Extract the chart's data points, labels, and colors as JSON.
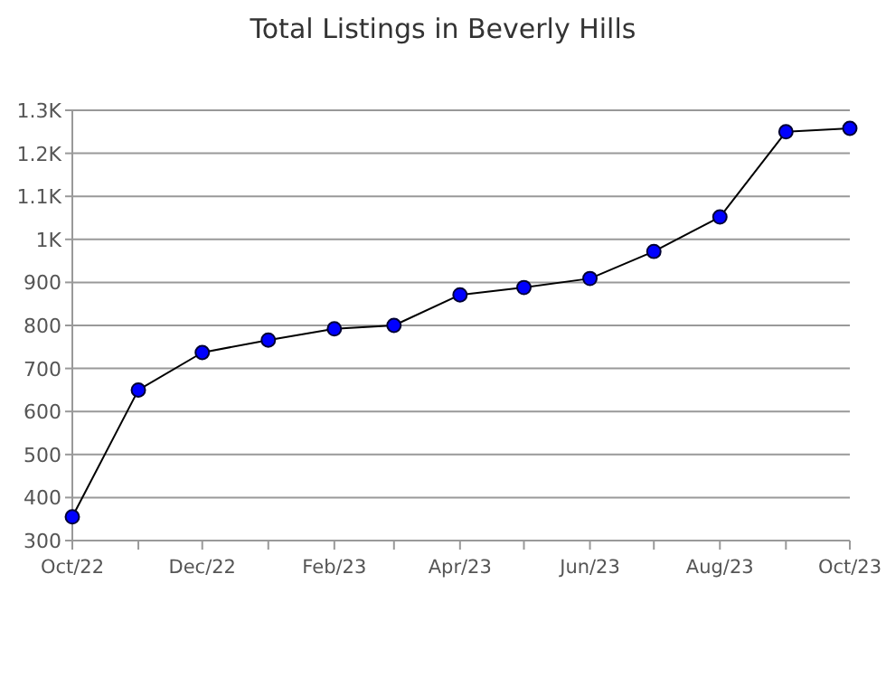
{
  "chart_data": {
    "type": "line",
    "title": "Total Listings in Beverly Hills",
    "x": [
      "2022-10",
      "2022-11",
      "2022-12",
      "2023-01",
      "2023-02",
      "2023-03",
      "2023-04",
      "2023-05",
      "2023-06",
      "2023-07",
      "2023-08",
      "2023-09",
      "2023-10"
    ],
    "series": [
      {
        "color": "#0000ff",
        "values": [
          355,
          650,
          737,
          766,
          792,
          800,
          871,
          888,
          909,
          972,
          1052,
          1250,
          1258
        ]
      }
    ],
    "xlim": [
      "2022-10",
      "2023-10"
    ],
    "xticks": [
      {
        "value": "2022-10",
        "label": "Oct/22"
      },
      {
        "value": "2022-11",
        "label": null
      },
      {
        "value": "2022-12",
        "label": "Dec/22"
      },
      {
        "value": "2023-01",
        "label": null
      },
      {
        "value": "2023-02",
        "label": "Feb/23"
      },
      {
        "value": "2023-03",
        "label": null
      },
      {
        "value": "2023-04",
        "label": "Apr/23"
      },
      {
        "value": "2023-05",
        "label": null
      },
      {
        "value": "2023-06",
        "label": "Jun/23"
      },
      {
        "value": "2023-07",
        "label": null
      },
      {
        "value": "2023-08",
        "label": "Aug/23"
      },
      {
        "value": "2023-09",
        "label": null
      },
      {
        "value": "2023-10",
        "label": "Oct/23"
      }
    ],
    "ylim": [
      300,
      1300
    ],
    "yticks": [
      300,
      400,
      500,
      600,
      700,
      800,
      900,
      {
        "value": 1000,
        "label": "1K"
      },
      {
        "value": 1100,
        "label": "1.1K"
      },
      {
        "value": 1200,
        "label": "1.2K"
      },
      {
        "value": 1300,
        "label": "1.3K"
      }
    ],
    "grid": "y",
    "marker": "circle",
    "line_style": "solid"
  }
}
